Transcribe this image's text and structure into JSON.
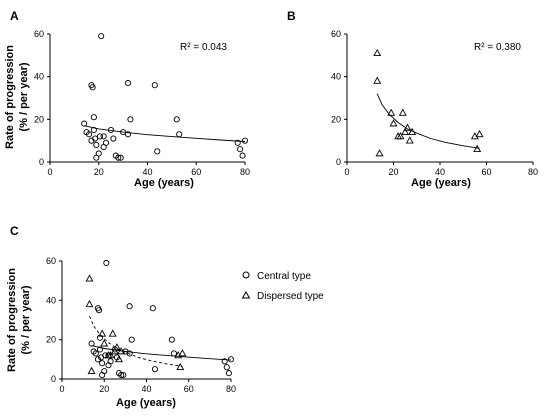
{
  "chart_data": [
    {
      "panel": "A",
      "type": "scatter",
      "title": "",
      "xlabel": "Age (years)",
      "ylabel_line1": "Rate of progression",
      "ylabel_line2": "(% / per year)",
      "xlim": [
        0,
        80
      ],
      "ylim": [
        0,
        60
      ],
      "xticks": [
        "0",
        "20",
        "40",
        "60",
        "80"
      ],
      "yticks": [
        "0",
        "20",
        "40",
        "60"
      ],
      "annotation": "R² = 0.043",
      "series": [
        {
          "marker": "circle",
          "points": [
            [
              14,
              18
            ],
            [
              15,
              14
            ],
            [
              16,
              13
            ],
            [
              17,
              10
            ],
            [
              17,
              36
            ],
            [
              17.5,
              35
            ],
            [
              18,
              21
            ],
            [
              18,
              15
            ],
            [
              18.5,
              11
            ],
            [
              19,
              8
            ],
            [
              19,
              2
            ],
            [
              20,
              4
            ],
            [
              20.5,
              12
            ],
            [
              21,
              59
            ],
            [
              22,
              12
            ],
            [
              22,
              7
            ],
            [
              23,
              9
            ],
            [
              25,
              15
            ],
            [
              26,
              11
            ],
            [
              27,
              3
            ],
            [
              28,
              2
            ],
            [
              29,
              2
            ],
            [
              30,
              14
            ],
            [
              32,
              13
            ],
            [
              32,
              37
            ],
            [
              33,
              20
            ],
            [
              43,
              36
            ],
            [
              44,
              5
            ],
            [
              52,
              20
            ],
            [
              53,
              13
            ],
            [
              77,
              9
            ],
            [
              78,
              6
            ],
            [
              79,
              3
            ],
            [
              80,
              10
            ]
          ]
        }
      ],
      "fit": {
        "style": "solid",
        "points": [
          [
            14,
            17
          ],
          [
            20,
            15.5
          ],
          [
            30,
            14
          ],
          [
            40,
            12.8
          ],
          [
            50,
            11.9
          ],
          [
            60,
            11.1
          ],
          [
            70,
            10.3
          ],
          [
            80,
            9.6
          ]
        ]
      }
    },
    {
      "panel": "B",
      "type": "scatter",
      "title": "",
      "xlabel": "Age (years)",
      "ylabel_line1": "",
      "ylabel_line2": "",
      "xlim": [
        0,
        80
      ],
      "ylim": [
        0,
        60
      ],
      "xticks": [
        "0",
        "20",
        "40",
        "60",
        "80"
      ],
      "yticks": [
        "0",
        "20",
        "40",
        "60"
      ],
      "annotation": "R² = 0.380",
      "series": [
        {
          "marker": "triangle",
          "points": [
            [
              13,
              51
            ],
            [
              13,
              38
            ],
            [
              14,
              4
            ],
            [
              19,
              23
            ],
            [
              20,
              18
            ],
            [
              22,
              12
            ],
            [
              23,
              12
            ],
            [
              24,
              23
            ],
            [
              25,
              14
            ],
            [
              26,
              16
            ],
            [
              27,
              10
            ],
            [
              28,
              14
            ],
            [
              55,
              12
            ],
            [
              56,
              6
            ],
            [
              57,
              13
            ]
          ]
        }
      ],
      "fit": {
        "style": "solid",
        "points": [
          [
            13,
            32
          ],
          [
            15,
            27
          ],
          [
            18,
            22.5
          ],
          [
            22,
            18.5
          ],
          [
            26,
            15.5
          ],
          [
            30,
            13.5
          ],
          [
            36,
            11
          ],
          [
            42,
            9.3
          ],
          [
            50,
            7.6
          ],
          [
            57,
            6.4
          ]
        ]
      }
    },
    {
      "panel": "C",
      "type": "scatter",
      "title": "",
      "xlabel": "Age (years)",
      "ylabel_line1": "Rate of progression",
      "ylabel_line2": "(% / per year)",
      "xlim": [
        0,
        80
      ],
      "ylim": [
        0,
        60
      ],
      "xticks": [
        "0",
        "20",
        "40",
        "60",
        "80"
      ],
      "yticks": [
        "0",
        "20",
        "40",
        "60"
      ],
      "annotation": "",
      "legend_position": "right",
      "series": [
        {
          "name": "Central type",
          "marker": "circle",
          "points": [
            [
              14,
              18
            ],
            [
              15,
              14
            ],
            [
              16,
              13
            ],
            [
              17,
              10
            ],
            [
              17,
              36
            ],
            [
              17.5,
              35
            ],
            [
              18,
              21
            ],
            [
              18,
              15
            ],
            [
              18.5,
              11
            ],
            [
              19,
              8
            ],
            [
              19,
              2
            ],
            [
              20,
              4
            ],
            [
              20.5,
              12
            ],
            [
              21,
              59
            ],
            [
              22,
              12
            ],
            [
              22,
              7
            ],
            [
              23,
              9
            ],
            [
              25,
              15
            ],
            [
              26,
              11
            ],
            [
              27,
              3
            ],
            [
              28,
              2
            ],
            [
              29,
              2
            ],
            [
              30,
              14
            ],
            [
              32,
              13
            ],
            [
              32,
              37
            ],
            [
              33,
              20
            ],
            [
              43,
              36
            ],
            [
              44,
              5
            ],
            [
              52,
              20
            ],
            [
              53,
              13
            ],
            [
              77,
              9
            ],
            [
              78,
              6
            ],
            [
              79,
              3
            ],
            [
              80,
              10
            ]
          ],
          "fit": {
            "style": "solid",
            "points": [
              [
                14,
                17
              ],
              [
                20,
                15.5
              ],
              [
                30,
                14
              ],
              [
                40,
                12.8
              ],
              [
                50,
                11.9
              ],
              [
                60,
                11.1
              ],
              [
                70,
                10.3
              ],
              [
                80,
                9.6
              ]
            ]
          }
        },
        {
          "name": "Dispersed type",
          "marker": "triangle",
          "points": [
            [
              13,
              51
            ],
            [
              13,
              38
            ],
            [
              14,
              4
            ],
            [
              19,
              23
            ],
            [
              20,
              18
            ],
            [
              22,
              12
            ],
            [
              23,
              12
            ],
            [
              24,
              23
            ],
            [
              25,
              14
            ],
            [
              26,
              16
            ],
            [
              27,
              10
            ],
            [
              28,
              14
            ],
            [
              55,
              12
            ],
            [
              56,
              6
            ],
            [
              57,
              13
            ]
          ],
          "fit": {
            "style": "dashed",
            "points": [
              [
                13,
                32
              ],
              [
                15,
                27
              ],
              [
                18,
                22.5
              ],
              [
                22,
                18.5
              ],
              [
                26,
                15.5
              ],
              [
                30,
                13.5
              ],
              [
                36,
                11
              ],
              [
                42,
                9.3
              ],
              [
                50,
                7.6
              ],
              [
                57,
                6.4
              ]
            ]
          }
        }
      ]
    }
  ]
}
